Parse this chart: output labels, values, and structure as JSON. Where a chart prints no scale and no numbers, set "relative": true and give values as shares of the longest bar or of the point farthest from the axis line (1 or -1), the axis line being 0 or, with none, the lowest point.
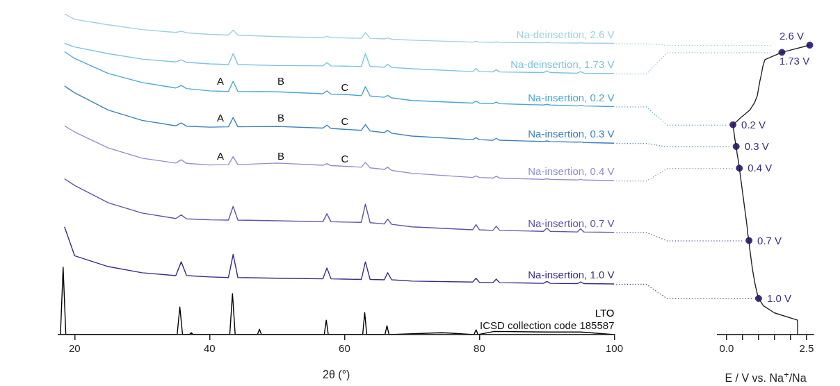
{
  "chart_data": [
    {
      "type": "line",
      "relative": true,
      "xlabel": "2θ (°)",
      "xlim": [
        17.6,
        100
      ],
      "xticks": [
        20,
        40,
        60,
        80,
        100
      ],
      "x": [
        18.5,
        20,
        25,
        30,
        35,
        35.8,
        36.6,
        40,
        42.8,
        43.5,
        44.2,
        50,
        56.8,
        57.4,
        58,
        60,
        62.5,
        63.1,
        63.8,
        65.9,
        66.4,
        67,
        70,
        79,
        79.5,
        80,
        82,
        82.5,
        83,
        89.5,
        90,
        90.5,
        94.5,
        95,
        95.5,
        100
      ],
      "series": [
        {
          "name": "Na-deinsertion, 2.6 V",
          "color": "#9fcfe6",
          "values": [
            1,
            0.983,
            0.966,
            0.951,
            0.942,
            0.946,
            0.941,
            0.936,
            0.934,
            0.949,
            0.934,
            0.929,
            0.926,
            0.93,
            0.926,
            0.925,
            0.924,
            0.942,
            0.924,
            0.922,
            0.925,
            0.921,
            0.918,
            0.912,
            0.914,
            0.912,
            0.911,
            0.913,
            0.911,
            0.91,
            0.911,
            0.91,
            0.909,
            0.91,
            0.909,
            0.908
          ]
        },
        {
          "name": "Na-deinsertion, 1.73 V",
          "color": "#7cc3e2",
          "values": [
            0.908,
            0.897,
            0.876,
            0.859,
            0.85,
            0.857,
            0.849,
            0.844,
            0.842,
            0.876,
            0.842,
            0.839,
            0.838,
            0.848,
            0.838,
            0.837,
            0.836,
            0.876,
            0.836,
            0.834,
            0.843,
            0.833,
            0.829,
            0.82,
            0.83,
            0.82,
            0.819,
            0.826,
            0.819,
            0.817,
            0.822,
            0.817,
            0.815,
            0.82,
            0.815,
            0.814
          ]
        },
        {
          "name": "Na-insertion, 0.2 V",
          "color": "#4aa6d6",
          "values": [
            0.882,
            0.861,
            0.814,
            0.786,
            0.769,
            0.777,
            0.767,
            0.76,
            0.758,
            0.79,
            0.758,
            0.757,
            0.751,
            0.76,
            0.75,
            0.749,
            0.745,
            0.773,
            0.744,
            0.74,
            0.746,
            0.738,
            0.73,
            0.722,
            0.728,
            0.722,
            0.72,
            0.725,
            0.72,
            0.716,
            0.718,
            0.716,
            0.713,
            0.715,
            0.713,
            0.711
          ]
        },
        {
          "name": "Na-insertion, 0.3 V",
          "color": "#3a7fbf",
          "values": [
            0.775,
            0.754,
            0.7,
            0.668,
            0.651,
            0.66,
            0.65,
            0.647,
            0.648,
            0.677,
            0.648,
            0.649,
            0.644,
            0.653,
            0.643,
            0.64,
            0.637,
            0.655,
            0.635,
            0.63,
            0.637,
            0.628,
            0.619,
            0.608,
            0.614,
            0.608,
            0.606,
            0.612,
            0.606,
            0.602,
            0.604,
            0.602,
            0.6,
            0.601,
            0.599,
            0.597
          ]
        },
        {
          "name": "Na-insertion, 0.4 V",
          "color": "#8e8fcf",
          "values": [
            0.651,
            0.632,
            0.582,
            0.55,
            0.535,
            0.545,
            0.534,
            0.529,
            0.53,
            0.555,
            0.53,
            0.535,
            0.528,
            0.533,
            0.527,
            0.525,
            0.522,
            0.537,
            0.52,
            0.515,
            0.522,
            0.512,
            0.503,
            0.49,
            0.495,
            0.49,
            0.488,
            0.494,
            0.488,
            0.484,
            0.486,
            0.484,
            0.482,
            0.484,
            0.482,
            0.48
          ]
        },
        {
          "name": "Na-insertion, 0.7 V",
          "color": "#5a53a8",
          "values": [
            0.486,
            0.465,
            0.411,
            0.379,
            0.362,
            0.373,
            0.361,
            0.358,
            0.357,
            0.4,
            0.357,
            0.355,
            0.352,
            0.377,
            0.352,
            0.351,
            0.35,
            0.407,
            0.349,
            0.345,
            0.36,
            0.344,
            0.336,
            0.327,
            0.343,
            0.327,
            0.325,
            0.338,
            0.325,
            0.322,
            0.332,
            0.322,
            0.32,
            0.33,
            0.32,
            0.319
          ]
        },
        {
          "name": "Na-insertion, 1.0 V",
          "color": "#3b2a87",
          "values": [
            0.336,
            0.246,
            0.212,
            0.193,
            0.184,
            0.227,
            0.184,
            0.18,
            0.178,
            0.25,
            0.178,
            0.176,
            0.174,
            0.208,
            0.174,
            0.173,
            0.172,
            0.227,
            0.172,
            0.171,
            0.193,
            0.171,
            0.167,
            0.164,
            0.176,
            0.163,
            0.162,
            0.173,
            0.162,
            0.16,
            0.166,
            0.16,
            0.159,
            0.164,
            0.159,
            0.158
          ]
        },
        {
          "name": "LTO",
          "color": "#000000",
          "x": [
            17.9,
            18.3,
            18.7,
            30,
            35.2,
            35.6,
            36,
            37,
            37.3,
            37.6,
            43,
            43.4,
            43.8,
            47.1,
            47.4,
            47.7,
            57,
            57.3,
            57.6,
            62.7,
            63,
            63.3,
            66,
            66.3,
            66.6,
            74.4,
            75.5,
            79.2,
            79.5,
            79.8,
            82.2,
            90,
            95,
            100
          ],
          "values": [
            0,
            0.21,
            0,
            0,
            0,
            0.086,
            0,
            0,
            0.006,
            0,
            0,
            0.128,
            0,
            0,
            0.017,
            0,
            0,
            0.045,
            0,
            0,
            0.069,
            0,
            0,
            0.028,
            0,
            0.006,
            0.005,
            0,
            0.015,
            0,
            0.01,
            0.008,
            0.008,
            0
          ]
        }
      ],
      "annotations": [
        "A",
        "B",
        "C",
        "A",
        "B",
        "C",
        "A",
        "B",
        "C",
        "ICSD collection code 185587"
      ]
    },
    {
      "type": "line",
      "orientation": "horizontal",
      "xlabel": "E / V  vs. Na$^{+}$/Na",
      "xlim": [
        -0.28,
        2.72
      ],
      "xticks": [
        {
          "value": 0,
          "label": "0.0"
        },
        {
          "value": 0.5,
          "label": null
        },
        {
          "value": 1,
          "label": null
        },
        {
          "value": 1.5,
          "label": null
        },
        {
          "value": 2,
          "label": null
        },
        {
          "value": 2.5,
          "label": "2.5"
        }
      ],
      "categories": [
        null,
        null,
        null,
        null,
        null,
        null,
        null,
        null,
        null,
        null,
        null,
        null,
        null,
        null,
        null,
        null,
        null,
        null,
        null,
        null,
        null,
        null,
        null,
        null,
        null,
        null,
        null,
        null,
        null,
        null,
        null,
        null,
        null,
        null,
        null,
        null,
        null,
        null,
        null,
        null,
        null
      ],
      "series": [
        {
          "color": "#222222",
          "values": [
            2.6,
            1.73,
            1.2,
            1.13,
            1.09,
            1.04,
            1.0,
            0.96,
            0.87,
            0.72,
            0.45,
            0.2,
            0.23,
            0.26,
            0.3,
            0.33,
            0.37,
            0.4,
            0.43,
            0.46,
            0.49,
            0.52,
            0.55,
            0.58,
            0.61,
            0.64,
            0.66,
            0.7,
            0.72,
            0.75,
            0.78,
            0.81,
            0.85,
            0.89,
            0.94,
            1.0,
            1.15,
            1.5,
            2.22,
            2.22,
            2.22
          ]
        },
        {
          "type": "scatter",
          "marker": "circle",
          "color": "#3b2a87",
          "values": [
            2.6,
            1.73,
            null,
            null,
            null,
            null,
            null,
            null,
            null,
            null,
            null,
            0.2,
            null,
            null,
            0.3,
            null,
            null,
            0.4,
            null,
            null,
            null,
            null,
            null,
            null,
            null,
            null,
            null,
            0.7,
            null,
            null,
            null,
            null,
            null,
            null,
            null,
            1.0,
            null,
            null,
            null,
            null,
            null
          ],
          "value_labels": [
            "2.6 V",
            "1.73 V",
            null,
            null,
            null,
            null,
            null,
            null,
            null,
            null,
            null,
            "0.2 V",
            null,
            null,
            "0.3 V",
            null,
            null,
            "0.4 V",
            null,
            null,
            null,
            null,
            null,
            null,
            null,
            null,
            null,
            "0.7 V",
            null,
            null,
            null,
            null,
            null,
            null,
            null,
            "1.0 V",
            null,
            null,
            null,
            null,
            null
          ]
        }
      ]
    }
  ]
}
